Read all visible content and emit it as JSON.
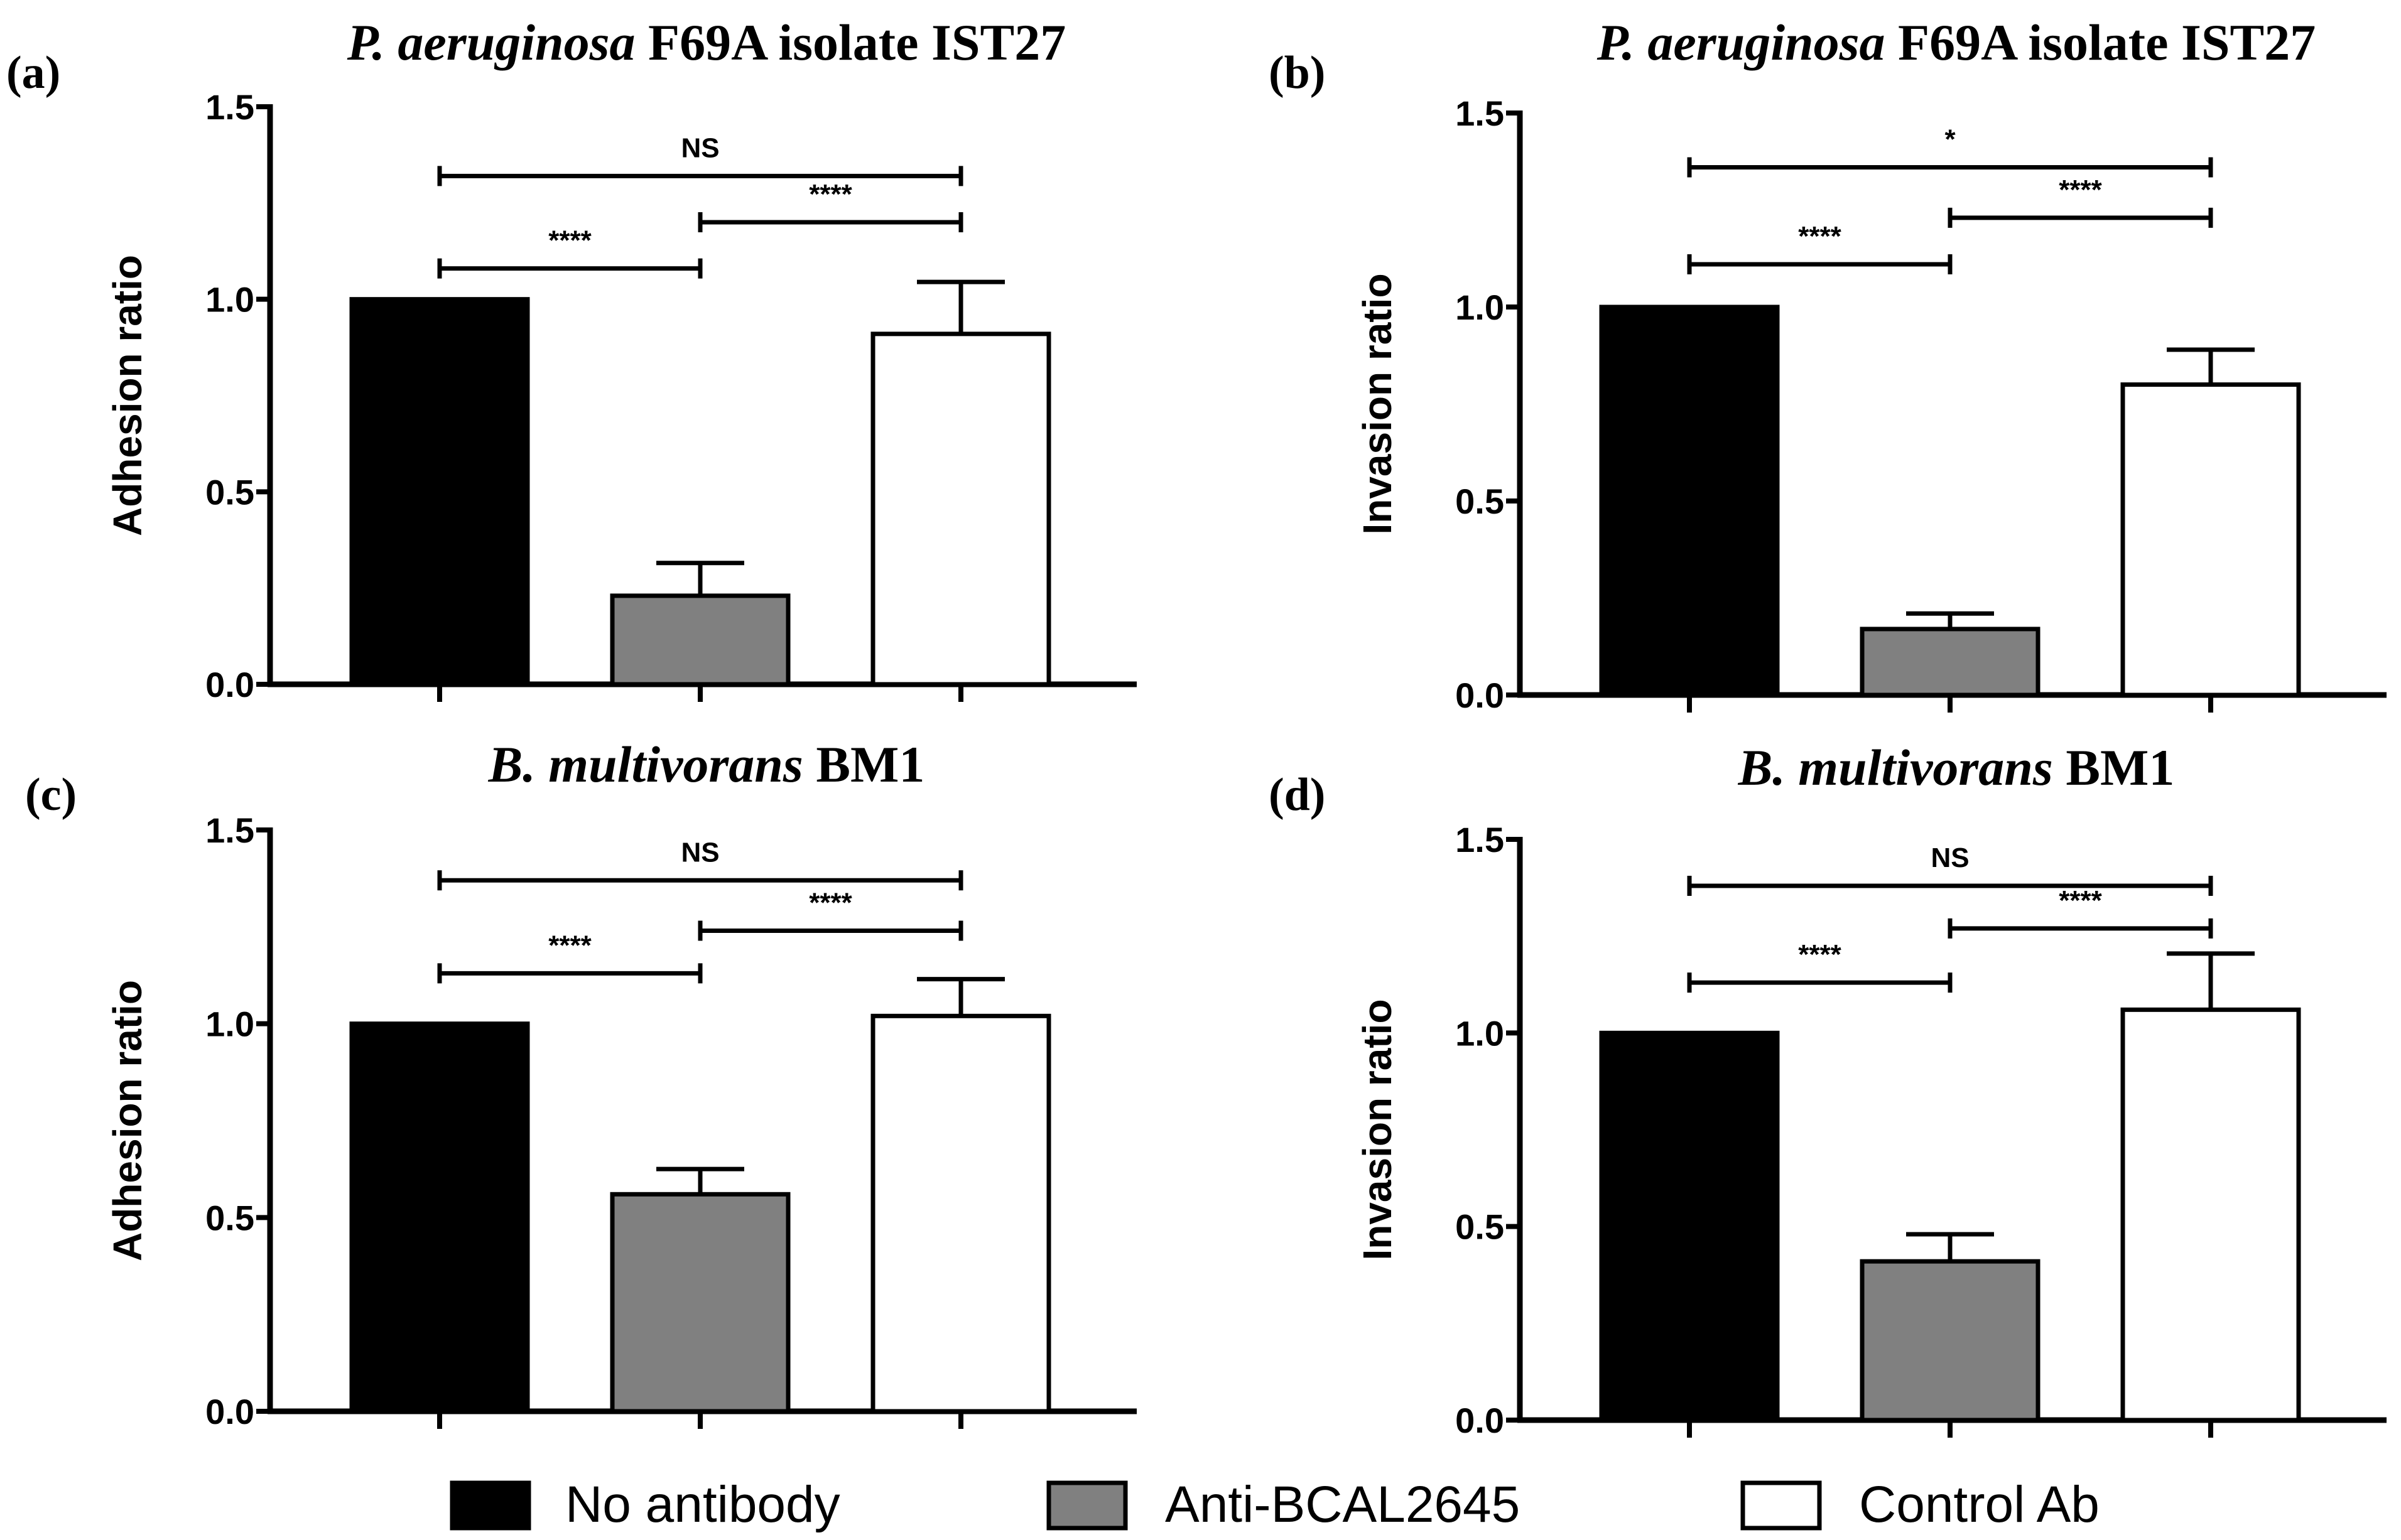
{
  "legend": {
    "items": [
      {
        "label": "No antibody",
        "color": "#000000"
      },
      {
        "label": "Anti-BCAL2645",
        "color": "#808080"
      },
      {
        "label": "Control Ab",
        "color": "#ffffff"
      }
    ]
  },
  "chart_data": [
    {
      "type": "bar",
      "panel_label": "(a)",
      "title_italic": "P. aeruginosa",
      "title_rest": " F69A isolate IST27",
      "ylabel": "Adhesion ratio",
      "ylim": [
        0,
        1.5
      ],
      "yticks": [
        "0.0",
        "0.5",
        "1.0",
        "1.5"
      ],
      "categories": [
        "No antibody",
        "Anti-BCAL2645",
        "Control Ab"
      ],
      "values": [
        1.0,
        0.23,
        0.91
      ],
      "errors": [
        0,
        0.085,
        0.135
      ],
      "colors": [
        "#000000",
        "#808080",
        "#ffffff"
      ],
      "comparisons": [
        {
          "from": 0,
          "to": 1,
          "y": 1.08,
          "label": "****"
        },
        {
          "from": 1,
          "to": 2,
          "y": 1.2,
          "label": "****"
        },
        {
          "from": 0,
          "to": 2,
          "y": 1.32,
          "label": "NS"
        }
      ]
    },
    {
      "type": "bar",
      "panel_label": "(b)",
      "title_italic": "P. aeruginosa",
      "title_rest": " F69A isolate IST27",
      "ylabel": "Invasion ratio",
      "ylim": [
        0,
        1.5
      ],
      "yticks": [
        "0.0",
        "0.5",
        "1.0",
        "1.5"
      ],
      "categories": [
        "No antibody",
        "Anti-BCAL2645",
        "Control Ab"
      ],
      "values": [
        1.0,
        0.17,
        0.8
      ],
      "errors": [
        0,
        0.04,
        0.09
      ],
      "colors": [
        "#000000",
        "#808080",
        "#ffffff"
      ],
      "comparisons": [
        {
          "from": 0,
          "to": 1,
          "y": 1.11,
          "label": "****"
        },
        {
          "from": 1,
          "to": 2,
          "y": 1.23,
          "label": "****"
        },
        {
          "from": 0,
          "to": 2,
          "y": 1.36,
          "label": "*"
        }
      ]
    },
    {
      "type": "bar",
      "panel_label": "(c)",
      "title_italic": "B. multivorans",
      "title_rest": " BM1",
      "ylabel": "Adhesion ratio",
      "ylim": [
        0,
        1.5
      ],
      "yticks": [
        "0.0",
        "0.5",
        "1.0",
        "1.5"
      ],
      "categories": [
        "No antibody",
        "Anti-BCAL2645",
        "Control Ab"
      ],
      "values": [
        1.0,
        0.56,
        1.02
      ],
      "errors": [
        0,
        0.065,
        0.095
      ],
      "colors": [
        "#000000",
        "#808080",
        "#ffffff"
      ],
      "comparisons": [
        {
          "from": 0,
          "to": 1,
          "y": 1.13,
          "label": "****"
        },
        {
          "from": 1,
          "to": 2,
          "y": 1.24,
          "label": "****"
        },
        {
          "from": 0,
          "to": 2,
          "y": 1.37,
          "label": "NS"
        }
      ]
    },
    {
      "type": "bar",
      "panel_label": "(d)",
      "title_italic": "B. multivorans",
      "title_rest": " BM1",
      "ylabel": "Invasion ratio",
      "ylim": [
        0,
        1.5
      ],
      "yticks": [
        "0.0",
        "0.5",
        "1.0",
        "1.5"
      ],
      "categories": [
        "No antibody",
        "Anti-BCAL2645",
        "Control Ab"
      ],
      "values": [
        1.0,
        0.41,
        1.06
      ],
      "errors": [
        0,
        0.07,
        0.145
      ],
      "colors": [
        "#000000",
        "#808080",
        "#ffffff"
      ],
      "comparisons": [
        {
          "from": 0,
          "to": 1,
          "y": 1.13,
          "label": "****"
        },
        {
          "from": 1,
          "to": 2,
          "y": 1.27,
          "label": "****"
        },
        {
          "from": 0,
          "to": 2,
          "y": 1.38,
          "label": "NS"
        }
      ]
    }
  ]
}
